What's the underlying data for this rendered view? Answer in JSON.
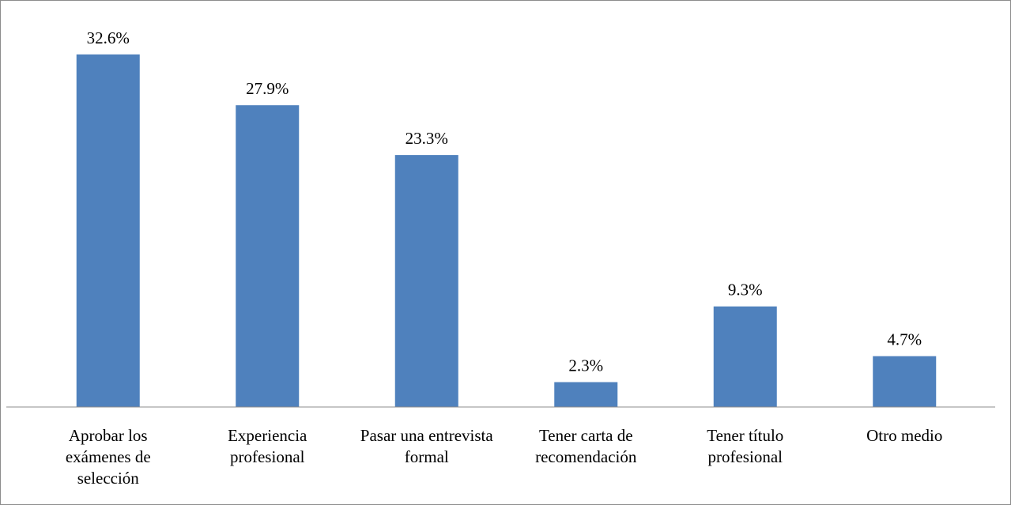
{
  "chart_data": {
    "type": "bar",
    "categories": [
      "Aprobar los exámenes de selección",
      "Experiencia profesional",
      "Pasar una entrevista formal",
      "Tener carta de recomendación",
      "Tener título profesional",
      "Otro medio"
    ],
    "values": [
      32.6,
      27.9,
      23.3,
      2.3,
      9.3,
      4.7
    ],
    "value_labels": [
      "32.6%",
      "27.9%",
      "23.3%",
      "2.3%",
      "9.3%",
      "4.7%"
    ],
    "color": "#4f81bd",
    "ylim": [
      0,
      35
    ]
  }
}
